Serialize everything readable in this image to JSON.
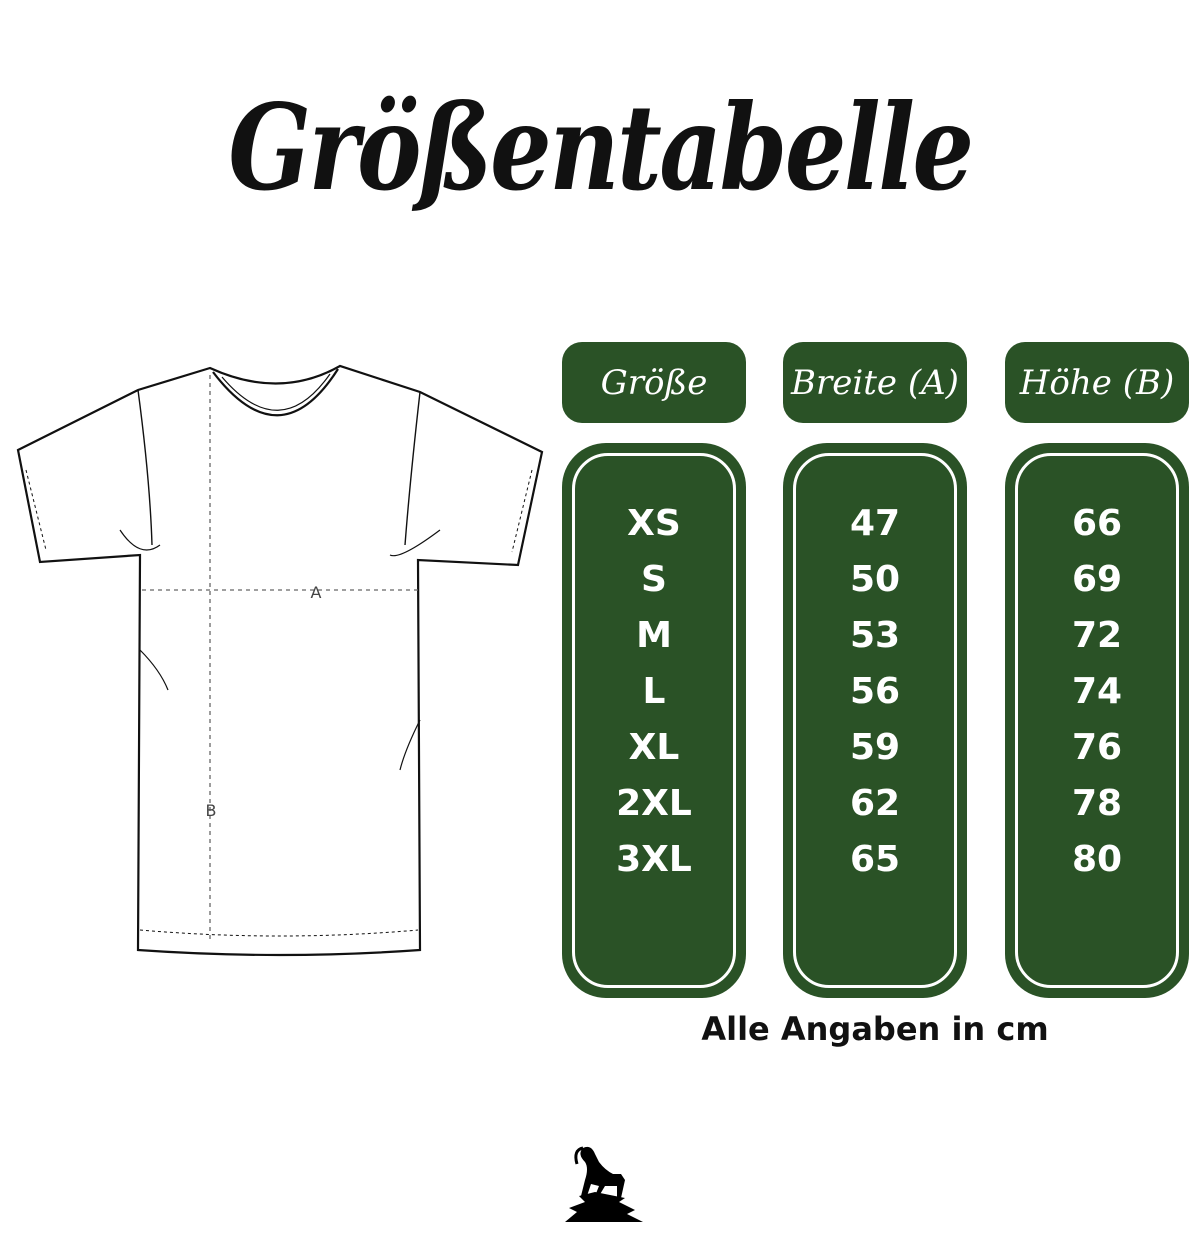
{
  "title": "Größentabelle",
  "shirt": {
    "label_a": "A",
    "label_b": "B"
  },
  "columns": [
    {
      "header": "Größe",
      "values": [
        "XS",
        "S",
        "M",
        "L",
        "XL",
        "2XL",
        "3XL"
      ]
    },
    {
      "header": "Breite (A)",
      "values": [
        "47",
        "50",
        "53",
        "56",
        "59",
        "62",
        "65"
      ]
    },
    {
      "header": "Höhe (B)",
      "values": [
        "66",
        "69",
        "72",
        "74",
        "76",
        "78",
        "80"
      ]
    }
  ],
  "note": "Alle Angaben in cm",
  "colors": {
    "accent": "#2a5226"
  },
  "logo": {
    "icon": "ibex-on-rock-icon"
  }
}
